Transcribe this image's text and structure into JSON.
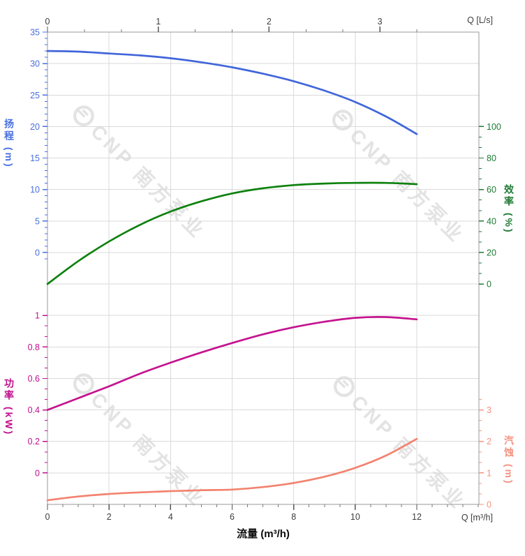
{
  "watermark": {
    "text": "CNP 南方泵业",
    "color": "#e3e3e4"
  },
  "colors": {
    "head_curve": "#4166da",
    "head_axis": "#4a6fe0",
    "efficiency_curve": "#0e810e",
    "efficiency_axis": "#1e7a33",
    "power_curve": "#c5138f",
    "power_axis": "#c0108c",
    "npsh_curve": "#f2836f",
    "npsh_axis": "#f5917f",
    "grid": "#dadada",
    "border": "#9a9a9a",
    "x_tick_text": "#3d3d3d",
    "x_tick": "#555555"
  },
  "chart_data": {
    "type": "line",
    "x_axis_bottom": {
      "label": "流量 (m³/h)",
      "corner_label": "Q [m³/h]",
      "unit": "m³/h",
      "tick_labels": [
        "0",
        "2",
        "4",
        "6",
        "8",
        "10",
        "12"
      ],
      "tick_values": [
        0,
        2,
        4,
        6,
        8,
        10,
        12
      ],
      "minor_step": 0.5,
      "axis_end_value": 14
    },
    "x_axis_top": {
      "corner_label": "Q [L/s]",
      "unit": "L/s",
      "tick_labels": [
        "0",
        "1",
        "2",
        "3"
      ],
      "tick_values": [
        0,
        1,
        2,
        3
      ],
      "minor_divisions": 3,
      "axis_end_value": 3.333
    },
    "y_axes": [
      {
        "id": "head",
        "title": "扬程 (m)",
        "side": "left",
        "unit": "m",
        "tick_labels": [
          "35",
          "30",
          "25",
          "20",
          "15",
          "10",
          "5",
          "0"
        ],
        "tick_values": [
          35,
          30,
          25,
          20,
          15,
          10,
          5,
          0
        ],
        "minor_divisions": 5,
        "extend_minors_below": 1,
        "extend_minors_above": 0,
        "scale": {
          "gridline_offset": 0,
          "value_at_offset": 35,
          "value_per_gridline": 5
        }
      },
      {
        "id": "efficiency",
        "title": "效率 (%)",
        "side": "right",
        "unit": "%",
        "tick_labels": [
          "100",
          "80",
          "60",
          "40",
          "20",
          "0"
        ],
        "tick_values": [
          100,
          80,
          60,
          40,
          20,
          0
        ],
        "minor_divisions": 3,
        "extend_minors_below": 0,
        "extend_minors_above": 0,
        "scale": {
          "gridline_offset": 3,
          "value_at_offset": 100,
          "value_per_gridline": 20
        }
      },
      {
        "id": "power",
        "title": "功率 (kW)",
        "side": "left",
        "unit": "kW",
        "tick_labels": [
          "1",
          "0.8",
          "0.6",
          "0.4",
          "0.2",
          "0"
        ],
        "tick_values": [
          1,
          0.8,
          0.6,
          0.4,
          0.2,
          0
        ],
        "minor_divisions": 3,
        "extend_minors_below": 0,
        "extend_minors_above": 0,
        "scale": {
          "gridline_offset": 9,
          "value_at_offset": 1,
          "value_per_gridline": 0.2
        }
      },
      {
        "id": "npsh",
        "title": "汽蚀 (m)",
        "side": "right",
        "unit": "m",
        "tick_labels": [
          "3",
          "2",
          "1",
          "0"
        ],
        "tick_values": [
          3,
          2,
          1,
          0
        ],
        "minor_divisions": 3,
        "extend_minors_below": 0,
        "extend_minors_above": 1,
        "scale": {
          "gridline_offset": 12,
          "value_at_offset": 3,
          "value_per_gridline": 1
        }
      }
    ],
    "series": [
      {
        "id": "head",
        "name": "扬程",
        "unit": "m",
        "color": "#4166da",
        "points": [
          [
            0,
            32.0
          ],
          [
            1,
            31.9
          ],
          [
            2,
            31.6
          ],
          [
            3,
            31.3
          ],
          [
            4,
            30.85
          ],
          [
            5,
            30.2
          ],
          [
            6,
            29.4
          ],
          [
            7,
            28.4
          ],
          [
            8,
            27.2
          ],
          [
            9,
            25.7
          ],
          [
            10,
            23.9
          ],
          [
            11,
            21.6
          ],
          [
            12,
            18.8
          ]
        ]
      },
      {
        "id": "efficiency",
        "name": "效率",
        "unit": "%",
        "color": "#0e810e",
        "points": [
          [
            0,
            0
          ],
          [
            1,
            14.5
          ],
          [
            2,
            27
          ],
          [
            3,
            37.5
          ],
          [
            4,
            46
          ],
          [
            5,
            52.5
          ],
          [
            6,
            57.5
          ],
          [
            7,
            60.8
          ],
          [
            8,
            62.8
          ],
          [
            9,
            63.8
          ],
          [
            10,
            64.2
          ],
          [
            11,
            64.2
          ],
          [
            12,
            63.4
          ]
        ]
      },
      {
        "id": "power",
        "name": "功率",
        "unit": "kW",
        "color": "#c5138f",
        "points": [
          [
            0,
            0.4
          ],
          [
            1,
            0.475
          ],
          [
            2,
            0.55
          ],
          [
            3,
            0.63
          ],
          [
            4,
            0.7
          ],
          [
            5,
            0.765
          ],
          [
            6,
            0.825
          ],
          [
            7,
            0.88
          ],
          [
            8,
            0.925
          ],
          [
            9,
            0.96
          ],
          [
            10,
            0.985
          ],
          [
            11,
            0.99
          ],
          [
            12,
            0.975
          ]
        ]
      },
      {
        "id": "npsh",
        "name": "汽蚀",
        "unit": "m",
        "color": "#f2836f",
        "points": [
          [
            0,
            0.13
          ],
          [
            1,
            0.25
          ],
          [
            2,
            0.33
          ],
          [
            3,
            0.38
          ],
          [
            4,
            0.42
          ],
          [
            5,
            0.45
          ],
          [
            6,
            0.47
          ],
          [
            7,
            0.55
          ],
          [
            8,
            0.68
          ],
          [
            9,
            0.88
          ],
          [
            10,
            1.16
          ],
          [
            11,
            1.55
          ],
          [
            12,
            2.08
          ]
        ]
      }
    ]
  }
}
